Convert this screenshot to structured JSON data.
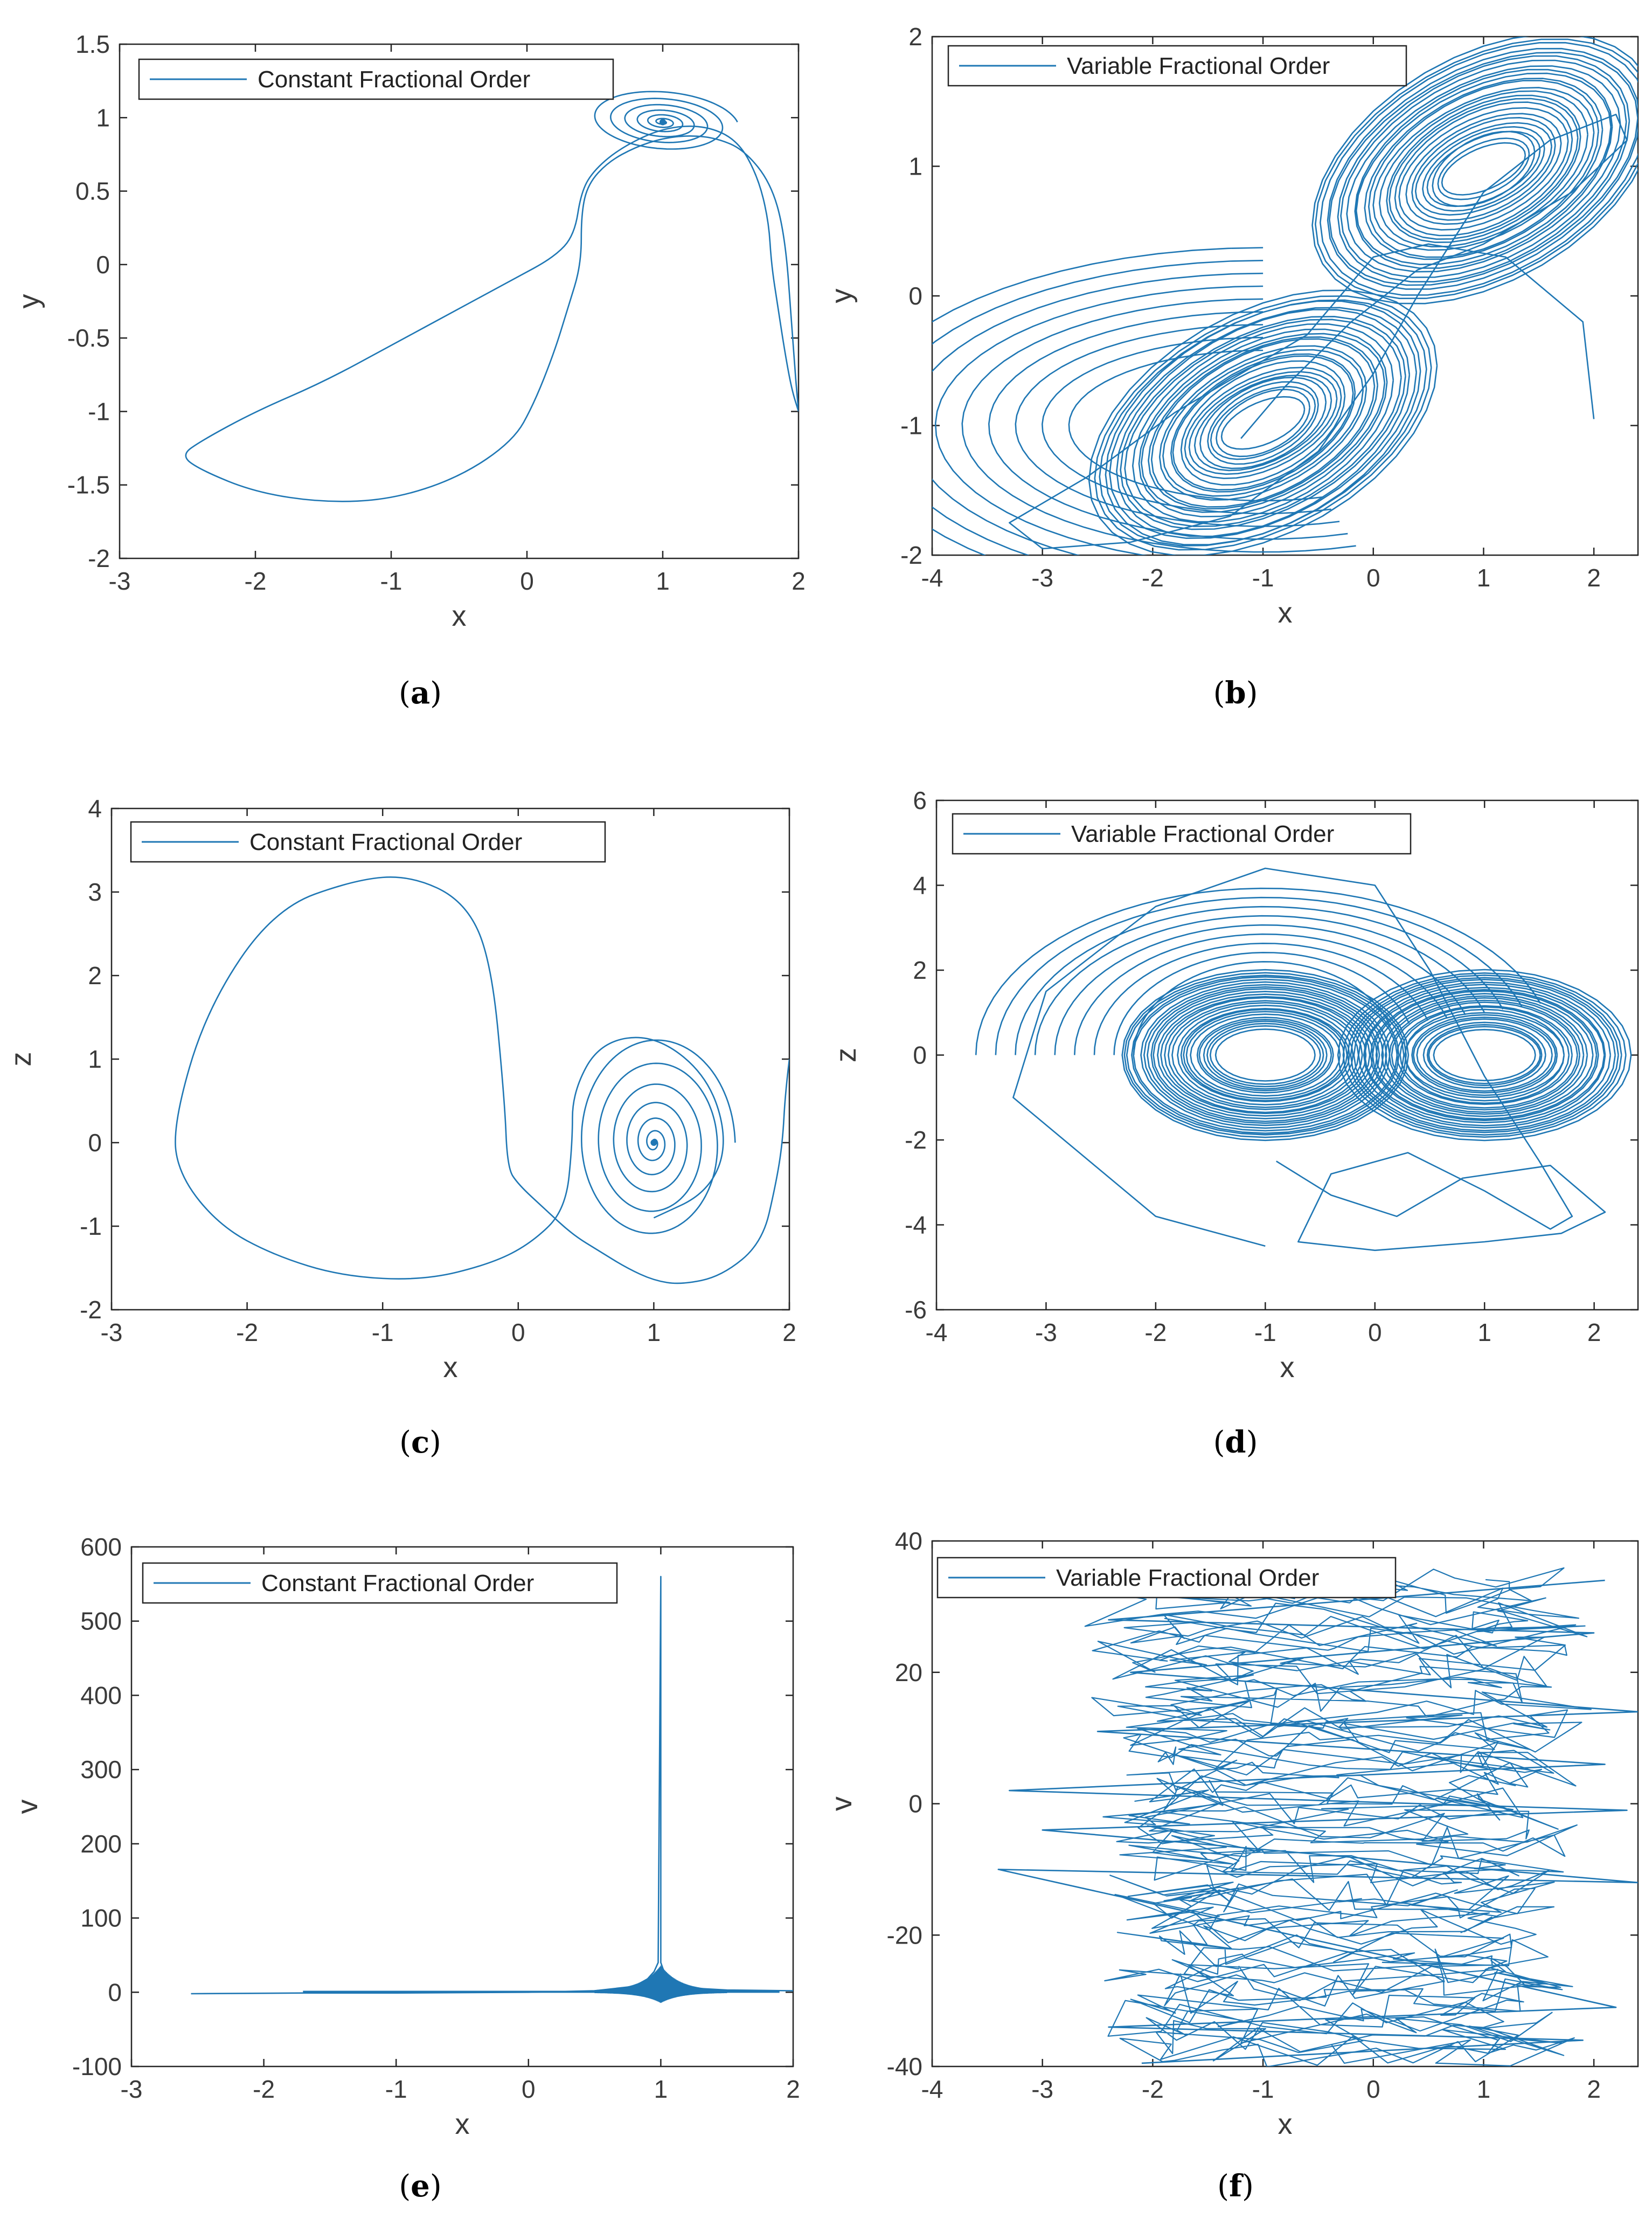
{
  "series_color": "#1f77b4",
  "chart_data": [
    {
      "id": "a",
      "caption_letter": "a",
      "type": "line",
      "xlabel": "x",
      "ylabel": "y",
      "xlim": [
        -3,
        2
      ],
      "ylim": [
        -2,
        1.5
      ],
      "xticks": [
        -3,
        -2,
        -1,
        0,
        1,
        2
      ],
      "yticks": [
        -2,
        -1.5,
        -1,
        -0.5,
        0,
        0.5,
        1,
        1.5
      ],
      "grid": false,
      "legend": "top-left",
      "series": [
        {
          "name": "Constant Fractional Order",
          "shape": "transient-to-focus",
          "x": [
            2.0,
            1.98,
            1.95,
            1.9,
            1.8,
            1.6,
            1.4,
            1.2,
            1.0,
            0.8,
            0.6,
            0.45,
            0.4,
            0.4,
            0.3,
            0.2,
            0.05,
            -0.1,
            -0.5,
            -1.0,
            -1.5,
            -2.0,
            -2.4,
            -2.55,
            -2.4,
            -2.0,
            -1.5,
            -1.0,
            -0.5,
            -0.1,
            0.2,
            0.35,
            0.4,
            0.5,
            0.7,
            1.0,
            1.3,
            1.55,
            1.7,
            1.78,
            1.8,
            1.85,
            1.9,
            1.95,
            2.0
          ],
          "y": [
            -1.0,
            -0.8,
            -0.4,
            0.2,
            0.55,
            0.78,
            0.86,
            0.88,
            0.86,
            0.8,
            0.7,
            0.55,
            0.35,
            0.0,
            -0.3,
            -0.6,
            -0.95,
            -1.2,
            -1.45,
            -1.6,
            -1.62,
            -1.55,
            -1.4,
            -1.3,
            -1.2,
            -1.0,
            -0.8,
            -0.55,
            -0.3,
            -0.1,
            0.05,
            0.2,
            0.5,
            0.65,
            0.8,
            0.93,
            0.95,
            0.85,
            0.6,
            0.3,
            0.0,
            -0.3,
            -0.6,
            -0.85,
            -1.0
          ]
        }
      ],
      "attractor": {
        "center": [
          1.0,
          0.97
        ]
      }
    },
    {
      "id": "b",
      "caption_letter": "b",
      "type": "line",
      "xlabel": "x",
      "ylabel": "y",
      "xlim": [
        -4,
        2.4
      ],
      "ylim": [
        -2,
        2
      ],
      "xticks": [
        -4,
        -3,
        -2,
        -1,
        0,
        1,
        2
      ],
      "yticks": [
        -2,
        -1,
        0,
        1,
        2
      ],
      "grid": false,
      "legend": "top-left",
      "series": [
        {
          "name": "Variable Fractional Order",
          "shape": "double-scroll",
          "x": [
            2.0,
            1.9,
            1.2,
            0.5,
            0.0,
            -0.6,
            -1.2,
            -1.8,
            -2.6,
            -3.3,
            -3.0,
            -2.2,
            -1.3,
            -0.5,
            0.0,
            0.4,
            1.0,
            1.6,
            2.2,
            2.3,
            1.8,
            1.0,
            0.4,
            -0.2,
            -0.8,
            -1.2
          ],
          "y": [
            -0.95,
            -0.2,
            0.3,
            0.4,
            0.3,
            -0.3,
            -0.6,
            -0.9,
            -1.4,
            -1.75,
            -1.95,
            -1.9,
            -1.7,
            -1.2,
            -0.6,
            0.0,
            0.8,
            1.2,
            1.4,
            1.2,
            0.8,
            0.4,
            0.2,
            -0.2,
            -0.7,
            -1.1
          ]
        }
      ],
      "attractor": {
        "centers": [
          [
            -1.0,
            -0.98
          ],
          [
            1.0,
            0.98
          ]
        ]
      }
    },
    {
      "id": "c",
      "caption_letter": "c",
      "type": "line",
      "xlabel": "x",
      "ylabel": "z",
      "xlim": [
        -3,
        2
      ],
      "ylim": [
        -2,
        4
      ],
      "xticks": [
        -3,
        -2,
        -1,
        0,
        1,
        2
      ],
      "yticks": [
        -2,
        -1,
        0,
        1,
        2,
        3,
        4
      ],
      "grid": false,
      "legend": "top-left",
      "series": [
        {
          "name": "Constant Fractional Order",
          "shape": "transient-to-focus",
          "x": [
            2.0,
            1.97,
            1.95,
            1.9,
            1.8,
            1.5,
            1.2,
            1.0,
            0.8,
            0.6,
            0.4,
            0.2,
            0.0,
            -0.08,
            -0.1,
            -0.2,
            -0.4,
            -0.8,
            -1.2,
            -1.8,
            -2.3,
            -2.55,
            -2.5,
            -2.2,
            -1.8,
            -1.3,
            -0.7,
            -0.2,
            0.1,
            0.35,
            0.4,
            0.4,
            0.6,
            1.0,
            1.4,
            1.55,
            1.4,
            1.0
          ],
          "y": [
            1.0,
            0.6,
            0.0,
            -0.5,
            -1.2,
            -1.6,
            -1.7,
            -1.65,
            -1.5,
            -1.3,
            -1.1,
            -0.8,
            -0.5,
            -0.3,
            0.5,
            2.2,
            2.9,
            3.2,
            3.15,
            2.8,
            1.6,
            0.2,
            -0.4,
            -1.0,
            -1.35,
            -1.6,
            -1.65,
            -1.45,
            -1.2,
            -0.8,
            0.0,
            0.6,
            1.2,
            1.3,
            0.8,
            0.0,
            -0.6,
            -0.9
          ]
        }
      ],
      "attractor": {
        "center": [
          1.0,
          0.0
        ]
      }
    },
    {
      "id": "d",
      "caption_letter": "d",
      "type": "line",
      "xlabel": "x",
      "ylabel": "z",
      "xlim": [
        -4,
        2.4
      ],
      "ylim": [
        -6,
        6
      ],
      "xticks": [
        -4,
        -3,
        -2,
        -1,
        0,
        1,
        2
      ],
      "yticks": [
        -6,
        -4,
        -2,
        0,
        2,
        4,
        6
      ],
      "grid": false,
      "legend": "top-left",
      "series": [
        {
          "name": "Variable Fractional Order",
          "shape": "double-scroll",
          "x": [
            -1.0,
            -2.0,
            -3.3,
            -3.0,
            -2.0,
            -1.0,
            0.0,
            0.5,
            1.0,
            1.5,
            1.8,
            1.6,
            1.0,
            0.3,
            -0.4,
            -0.7,
            0.0,
            1.0,
            1.7,
            2.1,
            1.6,
            0.8,
            0.2,
            -0.4,
            -0.9
          ],
          "y": [
            -4.5,
            -3.8,
            -1.0,
            1.5,
            3.5,
            4.4,
            4.0,
            2.0,
            -0.5,
            -2.5,
            -3.8,
            -4.1,
            -3.2,
            -2.3,
            -2.8,
            -4.4,
            -4.6,
            -4.4,
            -4.2,
            -3.7,
            -2.6,
            -2.9,
            -3.8,
            -3.3,
            -2.5
          ]
        }
      ],
      "attractor": {
        "centers": [
          [
            -1.0,
            0.0
          ],
          [
            1.0,
            0.0
          ]
        ]
      }
    },
    {
      "id": "e",
      "caption_letter": "e",
      "type": "line",
      "xlabel": "x",
      "ylabel": "v",
      "xlim": [
        -3,
        2
      ],
      "ylim": [
        -100,
        600
      ],
      "xticks": [
        -3,
        -2,
        -1,
        0,
        1,
        2
      ],
      "yticks": [
        -100,
        0,
        100,
        200,
        300,
        400,
        500,
        600
      ],
      "grid": false,
      "legend": "top-left",
      "series": [
        {
          "name": "Constant Fractional Order",
          "shape": "spike",
          "x": [
            -2.55,
            -1.7,
            -1.0,
            0.0,
            0.5,
            0.8,
            0.9,
            0.95,
            0.98,
            1.0,
            1.0,
            1.02,
            1.05,
            1.1,
            1.2,
            1.5,
            2.0
          ],
          "y": [
            -2,
            -1,
            -1,
            0,
            2,
            8,
            18,
            28,
            40,
            560,
            40,
            30,
            20,
            12,
            6,
            3,
            2
          ]
        }
      ]
    },
    {
      "id": "f",
      "caption_letter": "f",
      "type": "line",
      "xlabel": "x",
      "ylabel": "v",
      "xlim": [
        -4,
        2.4
      ],
      "ylim": [
        -40,
        40
      ],
      "xticks": [
        -4,
        -3,
        -2,
        -1,
        0,
        1,
        2
      ],
      "yticks": [
        -40,
        -20,
        0,
        20,
        40
      ],
      "grid": false,
      "legend": "top-left",
      "series": [
        {
          "name": "Variable Fractional Order",
          "shape": "noisy-oscillation",
          "x": [
            -2.1,
            1.9,
            -2.4,
            2.2,
            -3.4,
            2.4,
            -3.0,
            2.3,
            -3.3,
            2.1,
            -2.5,
            2.4,
            -2.2,
            2.0,
            -2.4,
            2.1
          ],
          "y": [
            -39.5,
            -36,
            -34,
            -31,
            -10,
            -12,
            -4,
            -1,
            2,
            6,
            11,
            14,
            20,
            26,
            28,
            34
          ]
        }
      ]
    }
  ]
}
